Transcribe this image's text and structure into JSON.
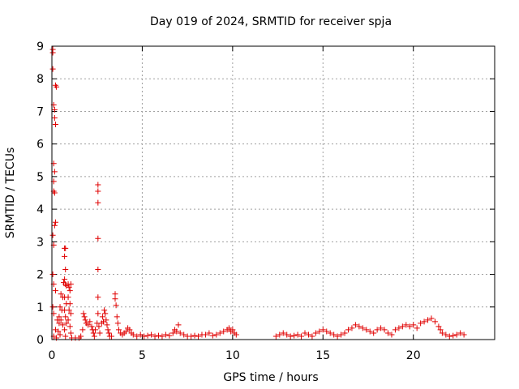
{
  "chart_data": {
    "type": "scatter",
    "title": "Day 019 of 2024, SRMTID for receiver spja",
    "xlabel": "GPS time / hours",
    "ylabel": "SRMTID / TECUs",
    "xlim": [
      0,
      24.5
    ],
    "ylim": [
      0,
      9
    ],
    "xticks": [
      0,
      5,
      10,
      15,
      20
    ],
    "yticks": [
      0,
      1,
      2,
      3,
      4,
      5,
      6,
      7,
      8,
      9
    ],
    "grid": true,
    "marker": "+",
    "color": "#e00000",
    "series": [
      {
        "name": "SRMTID",
        "points": [
          [
            0.05,
            8.9
          ],
          [
            0.05,
            8.8
          ],
          [
            0.05,
            8.3
          ],
          [
            0.1,
            7.2
          ],
          [
            0.15,
            7.05
          ],
          [
            0.2,
            7.8
          ],
          [
            0.25,
            7.75
          ],
          [
            0.15,
            6.8
          ],
          [
            0.2,
            6.6
          ],
          [
            0.1,
            5.4
          ],
          [
            0.15,
            5.15
          ],
          [
            0.1,
            4.85
          ],
          [
            0.1,
            4.55
          ],
          [
            0.15,
            4.5
          ],
          [
            0.2,
            3.6
          ],
          [
            0.15,
            3.5
          ],
          [
            0.05,
            3.2
          ],
          [
            0.1,
            2.9
          ],
          [
            0.05,
            2.0
          ],
          [
            0.1,
            1.7
          ],
          [
            0.2,
            1.5
          ],
          [
            0.05,
            1.0
          ],
          [
            0.1,
            0.8
          ],
          [
            0.3,
            0.6
          ],
          [
            0.4,
            0.5
          ],
          [
            0.2,
            0.3
          ],
          [
            0.1,
            0.1
          ],
          [
            0.25,
            0.05
          ],
          [
            0.5,
            1.4
          ],
          [
            0.6,
            1.3
          ],
          [
            0.45,
            1.0
          ],
          [
            0.55,
            0.9
          ],
          [
            0.4,
            0.7
          ],
          [
            0.5,
            0.6
          ],
          [
            0.6,
            0.45
          ],
          [
            0.35,
            0.25
          ],
          [
            0.45,
            0.15
          ],
          [
            0.7,
            2.8
          ],
          [
            0.75,
            2.8
          ],
          [
            0.7,
            2.55
          ],
          [
            0.75,
            2.15
          ],
          [
            0.7,
            1.85
          ],
          [
            0.75,
            1.7
          ],
          [
            0.65,
            1.75
          ],
          [
            0.8,
            1.65
          ],
          [
            0.7,
            1.3
          ],
          [
            0.8,
            1.1
          ],
          [
            0.7,
            0.9
          ],
          [
            0.75,
            0.7
          ],
          [
            0.8,
            0.5
          ],
          [
            0.7,
            0.3
          ],
          [
            0.75,
            0.1
          ],
          [
            0.9,
            1.7
          ],
          [
            0.95,
            1.6
          ],
          [
            1.0,
            1.5
          ],
          [
            1.05,
            1.7
          ],
          [
            0.9,
            1.3
          ],
          [
            1.0,
            1.1
          ],
          [
            0.95,
            0.9
          ],
          [
            1.05,
            0.8
          ],
          [
            0.9,
            0.6
          ],
          [
            1.0,
            0.4
          ],
          [
            1.05,
            0.2
          ],
          [
            1.1,
            0.05
          ],
          [
            1.3,
            0.05
          ],
          [
            1.5,
            0.05
          ],
          [
            1.6,
            0.1
          ],
          [
            1.7,
            0.3
          ],
          [
            1.75,
            0.8
          ],
          [
            1.8,
            0.7
          ],
          [
            1.85,
            0.6
          ],
          [
            1.9,
            0.5
          ],
          [
            2.0,
            0.45
          ],
          [
            2.1,
            0.55
          ],
          [
            2.2,
            0.4
          ],
          [
            2.25,
            0.3
          ],
          [
            2.3,
            0.2
          ],
          [
            2.35,
            0.1
          ],
          [
            2.55,
            4.75
          ],
          [
            2.55,
            4.55
          ],
          [
            2.55,
            4.2
          ],
          [
            2.55,
            3.1
          ],
          [
            2.55,
            2.15
          ],
          [
            2.55,
            1.3
          ],
          [
            2.55,
            0.8
          ],
          [
            2.5,
            0.5
          ],
          [
            2.6,
            0.4
          ],
          [
            2.4,
            0.3
          ],
          [
            2.65,
            0.2
          ],
          [
            2.75,
            0.5
          ],
          [
            2.8,
            0.7
          ],
          [
            2.85,
            0.55
          ],
          [
            2.9,
            0.9
          ],
          [
            2.95,
            0.8
          ],
          [
            3.0,
            0.6
          ],
          [
            3.05,
            0.45
          ],
          [
            3.1,
            0.3
          ],
          [
            3.15,
            0.2
          ],
          [
            3.2,
            0.1
          ],
          [
            3.3,
            0.1
          ],
          [
            3.5,
            1.4
          ],
          [
            3.5,
            1.25
          ],
          [
            3.55,
            1.05
          ],
          [
            3.6,
            0.7
          ],
          [
            3.65,
            0.5
          ],
          [
            3.7,
            0.3
          ],
          [
            3.8,
            0.2
          ],
          [
            3.9,
            0.15
          ],
          [
            4.0,
            0.2
          ],
          [
            4.1,
            0.25
          ],
          [
            4.2,
            0.35
          ],
          [
            4.3,
            0.3
          ],
          [
            4.4,
            0.2
          ],
          [
            4.5,
            0.15
          ],
          [
            4.7,
            0.1
          ],
          [
            4.9,
            0.15
          ],
          [
            5.1,
            0.1
          ],
          [
            5.3,
            0.12
          ],
          [
            5.5,
            0.15
          ],
          [
            5.7,
            0.1
          ],
          [
            5.9,
            0.12
          ],
          [
            6.1,
            0.1
          ],
          [
            6.3,
            0.15
          ],
          [
            6.5,
            0.12
          ],
          [
            6.7,
            0.2
          ],
          [
            6.8,
            0.3
          ],
          [
            6.9,
            0.25
          ],
          [
            7.0,
            0.45
          ],
          [
            7.1,
            0.2
          ],
          [
            7.3,
            0.15
          ],
          [
            7.5,
            0.1
          ],
          [
            7.7,
            0.1
          ],
          [
            7.9,
            0.12
          ],
          [
            8.1,
            0.1
          ],
          [
            8.3,
            0.15
          ],
          [
            8.5,
            0.15
          ],
          [
            8.7,
            0.2
          ],
          [
            8.9,
            0.12
          ],
          [
            9.1,
            0.15
          ],
          [
            9.3,
            0.2
          ],
          [
            9.5,
            0.25
          ],
          [
            9.7,
            0.3
          ],
          [
            9.8,
            0.35
          ],
          [
            9.9,
            0.25
          ],
          [
            10.0,
            0.3
          ],
          [
            10.1,
            0.2
          ],
          [
            10.2,
            0.15
          ],
          [
            12.4,
            0.1
          ],
          [
            12.6,
            0.15
          ],
          [
            12.8,
            0.2
          ],
          [
            13.0,
            0.15
          ],
          [
            13.2,
            0.1
          ],
          [
            13.4,
            0.12
          ],
          [
            13.6,
            0.15
          ],
          [
            13.8,
            0.1
          ],
          [
            14.0,
            0.2
          ],
          [
            14.2,
            0.15
          ],
          [
            14.4,
            0.1
          ],
          [
            14.6,
            0.2
          ],
          [
            14.8,
            0.25
          ],
          [
            15.0,
            0.3
          ],
          [
            15.2,
            0.25
          ],
          [
            15.4,
            0.2
          ],
          [
            15.6,
            0.15
          ],
          [
            15.8,
            0.1
          ],
          [
            16.0,
            0.15
          ],
          [
            16.2,
            0.2
          ],
          [
            16.4,
            0.3
          ],
          [
            16.6,
            0.35
          ],
          [
            16.8,
            0.45
          ],
          [
            17.0,
            0.4
          ],
          [
            17.2,
            0.35
          ],
          [
            17.4,
            0.3
          ],
          [
            17.6,
            0.25
          ],
          [
            17.8,
            0.2
          ],
          [
            18.0,
            0.3
          ],
          [
            18.2,
            0.35
          ],
          [
            18.4,
            0.3
          ],
          [
            18.6,
            0.2
          ],
          [
            18.8,
            0.15
          ],
          [
            19.0,
            0.3
          ],
          [
            19.2,
            0.35
          ],
          [
            19.4,
            0.4
          ],
          [
            19.6,
            0.45
          ],
          [
            19.8,
            0.4
          ],
          [
            20.0,
            0.45
          ],
          [
            20.2,
            0.35
          ],
          [
            20.4,
            0.5
          ],
          [
            20.6,
            0.55
          ],
          [
            20.8,
            0.6
          ],
          [
            21.0,
            0.65
          ],
          [
            21.2,
            0.55
          ],
          [
            21.4,
            0.4
          ],
          [
            21.5,
            0.3
          ],
          [
            21.6,
            0.2
          ],
          [
            21.8,
            0.15
          ],
          [
            22.0,
            0.1
          ],
          [
            22.2,
            0.12
          ],
          [
            22.4,
            0.15
          ],
          [
            22.6,
            0.2
          ],
          [
            22.8,
            0.15
          ]
        ]
      }
    ]
  }
}
